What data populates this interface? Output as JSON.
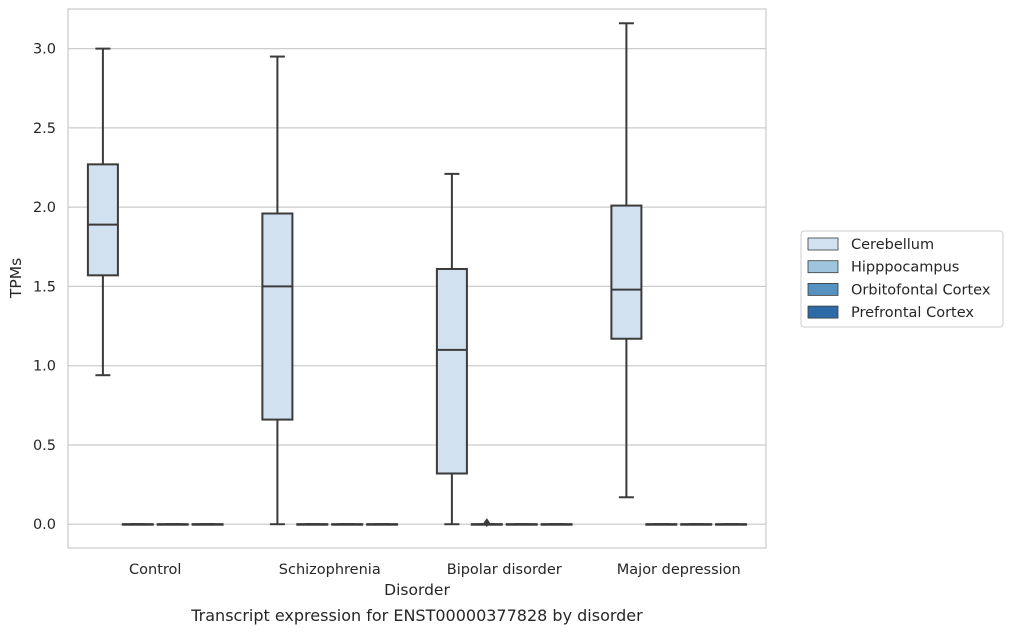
{
  "chart_data": {
    "type": "box",
    "xlabel": "Disorder",
    "ylabel": "TPMs",
    "caption": "Transcript expression for ENST00000377828 by disorder",
    "categories": [
      "Control",
      "Schizophrenia",
      "Bipolar disorder",
      "Major depression"
    ],
    "ylim": [
      -0.15,
      3.25
    ],
    "yticks": [
      0.0,
      0.5,
      1.0,
      1.5,
      2.0,
      2.5,
      3.0
    ],
    "ytick_labels": [
      "0.0",
      "0.5",
      "1.0",
      "1.5",
      "2.0",
      "2.5",
      "3.0"
    ],
    "grid": true,
    "legend_position": "right",
    "colors": {
      "Cerebellum": "#d2e1ef",
      "Hipppocampus": "#9ec4de",
      "Orbitofontal Cortex": "#5592c2",
      "Prefrontal Cortex": "#2c6ba8",
      "line": "#3b3b3b",
      "grid": "#cccccc",
      "frame": "#cccccc"
    },
    "series": [
      {
        "name": "Cerebellum",
        "boxes": [
          {
            "category": "Control",
            "whisker_low": 0.94,
            "q1": 1.57,
            "median": 1.89,
            "q3": 2.27,
            "whisker_high": 3.0,
            "outliers": []
          },
          {
            "category": "Schizophrenia",
            "whisker_low": 0.0,
            "q1": 0.66,
            "median": 1.5,
            "q3": 1.96,
            "whisker_high": 2.95,
            "outliers": []
          },
          {
            "category": "Bipolar disorder",
            "whisker_low": 0.0,
            "q1": 0.32,
            "median": 1.1,
            "q3": 1.61,
            "whisker_high": 2.21,
            "outliers": []
          },
          {
            "category": "Major depression",
            "whisker_low": 0.17,
            "q1": 1.17,
            "median": 1.48,
            "q3": 2.01,
            "whisker_high": 3.16,
            "outliers": []
          }
        ]
      },
      {
        "name": "Hipppocampus",
        "boxes": [
          {
            "category": "Control",
            "whisker_low": 0.0,
            "q1": 0.0,
            "median": 0.0,
            "q3": 0.0,
            "whisker_high": 0.0,
            "outliers": []
          },
          {
            "category": "Schizophrenia",
            "whisker_low": 0.0,
            "q1": 0.0,
            "median": 0.0,
            "q3": 0.0,
            "whisker_high": 0.0,
            "outliers": []
          },
          {
            "category": "Bipolar disorder",
            "whisker_low": 0.0,
            "q1": 0.0,
            "median": 0.0,
            "q3": 0.0,
            "whisker_high": 0.0,
            "outliers": [
              0.01
            ]
          },
          {
            "category": "Major depression",
            "whisker_low": 0.0,
            "q1": 0.0,
            "median": 0.0,
            "q3": 0.0,
            "whisker_high": 0.0,
            "outliers": []
          }
        ]
      },
      {
        "name": "Orbitofontal Cortex",
        "boxes": [
          {
            "category": "Control",
            "whisker_low": 0.0,
            "q1": 0.0,
            "median": 0.0,
            "q3": 0.0,
            "whisker_high": 0.0,
            "outliers": []
          },
          {
            "category": "Schizophrenia",
            "whisker_low": 0.0,
            "q1": 0.0,
            "median": 0.0,
            "q3": 0.0,
            "whisker_high": 0.0,
            "outliers": []
          },
          {
            "category": "Bipolar disorder",
            "whisker_low": 0.0,
            "q1": 0.0,
            "median": 0.0,
            "q3": 0.0,
            "whisker_high": 0.0,
            "outliers": []
          },
          {
            "category": "Major depression",
            "whisker_low": 0.0,
            "q1": 0.0,
            "median": 0.0,
            "q3": 0.0,
            "whisker_high": 0.0,
            "outliers": []
          }
        ]
      },
      {
        "name": "Prefrontal Cortex",
        "boxes": [
          {
            "category": "Control",
            "whisker_low": 0.0,
            "q1": 0.0,
            "median": 0.0,
            "q3": 0.0,
            "whisker_high": 0.0,
            "outliers": []
          },
          {
            "category": "Schizophrenia",
            "whisker_low": 0.0,
            "q1": 0.0,
            "median": 0.0,
            "q3": 0.0,
            "whisker_high": 0.0,
            "outliers": []
          },
          {
            "category": "Bipolar disorder",
            "whisker_low": 0.0,
            "q1": 0.0,
            "median": 0.0,
            "q3": 0.0,
            "whisker_high": 0.0,
            "outliers": []
          },
          {
            "category": "Major depression",
            "whisker_low": 0.0,
            "q1": 0.0,
            "median": 0.0,
            "q3": 0.0,
            "whisker_high": 0.0,
            "outliers": []
          }
        ]
      }
    ]
  }
}
